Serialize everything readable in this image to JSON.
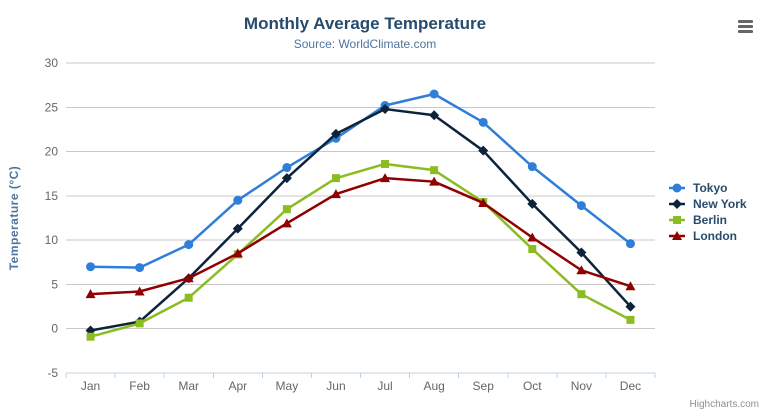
{
  "chart_data": {
    "type": "line",
    "title": "Monthly Average Temperature",
    "subtitle": "Source: WorldClimate.com",
    "categories": [
      "Jan",
      "Feb",
      "Mar",
      "Apr",
      "May",
      "Jun",
      "Jul",
      "Aug",
      "Sep",
      "Oct",
      "Nov",
      "Dec"
    ],
    "series": [
      {
        "name": "Tokyo",
        "color": "#2f7ed8",
        "marker": "circle",
        "values": [
          7.0,
          6.9,
          9.5,
          14.5,
          18.2,
          21.5,
          25.2,
          26.5,
          23.3,
          18.3,
          13.9,
          9.6
        ]
      },
      {
        "name": "New York",
        "color": "#0d233a",
        "marker": "diamond",
        "values": [
          -0.2,
          0.8,
          5.7,
          11.3,
          17.0,
          22.0,
          24.8,
          24.1,
          20.1,
          14.1,
          8.6,
          2.5
        ]
      },
      {
        "name": "Berlin",
        "color": "#8bbc21",
        "marker": "square",
        "values": [
          -0.9,
          0.6,
          3.5,
          8.4,
          13.5,
          17.0,
          18.6,
          17.9,
          14.3,
          9.0,
          3.9,
          1.0
        ]
      },
      {
        "name": "London",
        "color": "#910000",
        "marker": "triangle",
        "values": [
          3.9,
          4.2,
          5.7,
          8.5,
          11.9,
          15.2,
          17.0,
          16.6,
          14.2,
          10.3,
          6.6,
          4.8
        ]
      }
    ],
    "xlabel": "",
    "ylabel": "Temperature (°C)",
    "ylim": [
      -5,
      30
    ],
    "yticks": [
      -5,
      0,
      5,
      10,
      15,
      20,
      25,
      30
    ],
    "grid": true,
    "legend_position": "right",
    "credits": "Highcharts.com"
  },
  "icons": {
    "export_menu": "hamburger-menu-icon"
  },
  "colors": {
    "grid": "#c8c8c8",
    "axis_line": "#c0d0e0",
    "axis_label": "#666666",
    "title": "#274b6d",
    "subtitle": "#4d759e",
    "legend_text": "#274b6d",
    "credits_text": "#909090"
  }
}
